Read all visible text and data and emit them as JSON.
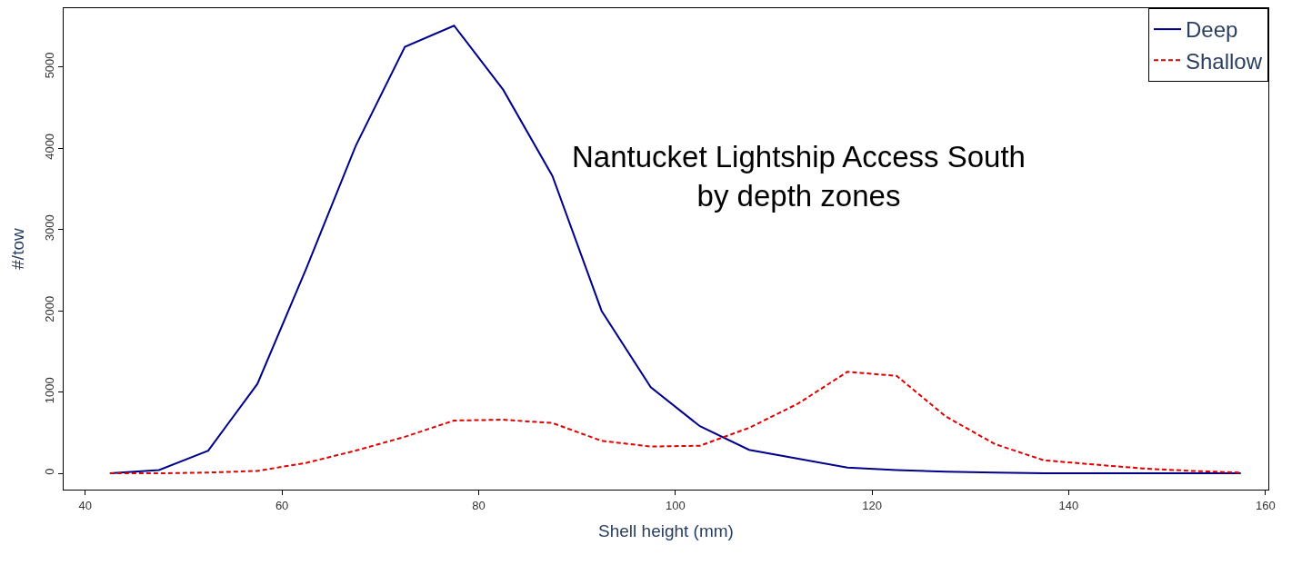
{
  "chart_data": {
    "type": "line",
    "xlabel": "Shell height (mm)",
    "ylabel": "#/tow",
    "annotations": [
      "Nantucket Lightship Access South\nby depth zones"
    ],
    "x": [
      42.5,
      47.5,
      52.5,
      57.5,
      62.5,
      67.5,
      72.5,
      77.5,
      82.5,
      87.5,
      92.5,
      97.5,
      102.5,
      107.5,
      112.5,
      117.5,
      122.5,
      127.5,
      132.5,
      137.5,
      142.5,
      147.5,
      152.5,
      157.5
    ],
    "series": [
      {
        "name": "Deep",
        "color": "#00008b",
        "line_style": "solid",
        "values": [
          0,
          40,
          280,
          1100,
          2530,
          4030,
          5250,
          5510,
          4720,
          3660,
          2000,
          1060,
          580,
          290,
          180,
          70,
          40,
          20,
          10,
          0,
          0,
          0,
          0,
          0
        ]
      },
      {
        "name": "Shallow",
        "color": "#dd0000",
        "line_style": "dashed",
        "values": [
          0,
          0,
          10,
          30,
          130,
          280,
          450,
          650,
          660,
          620,
          400,
          330,
          340,
          560,
          860,
          1250,
          1200,
          700,
          360,
          160,
          110,
          60,
          30,
          10
        ]
      }
    ],
    "xlim": [
      37.8,
      160.3
    ],
    "ylim": [
      -200,
      5725
    ],
    "xticks": [
      40,
      60,
      80,
      100,
      120,
      140,
      160
    ],
    "yticks": [
      0,
      1000,
      2000,
      3000,
      4000,
      5000
    ],
    "legend": "top right",
    "marker": "none"
  }
}
